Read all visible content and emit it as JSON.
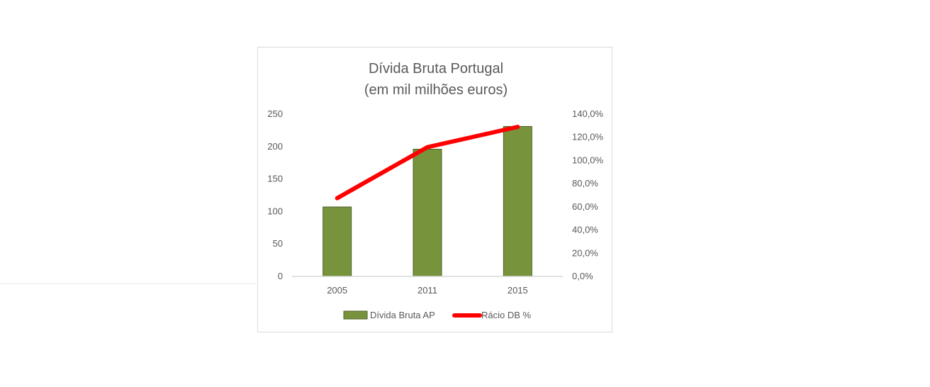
{
  "chart_data": {
    "type": "bar",
    "title": "Dívida Bruta Portugal",
    "subtitle": "(em mil milhões euros)",
    "categories": [
      "2005",
      "2011",
      "2015"
    ],
    "series": [
      {
        "name": "Dívida Bruta AP",
        "type": "bar",
        "axis": "left",
        "values": [
          107,
          196,
          231
        ],
        "color": "#77933c",
        "border": "#4f6228"
      },
      {
        "name": "Rácio DB %",
        "type": "line",
        "axis": "right",
        "values": [
          67.5,
          111.5,
          129.0
        ],
        "color": "#ff0000"
      }
    ],
    "y_left": {
      "min": 0,
      "max": 250,
      "ticks": [
        "0",
        "50",
        "100",
        "150",
        "200",
        "250"
      ]
    },
    "y_right": {
      "min": 0,
      "max": 140,
      "ticks": [
        "0,0%",
        "20,0%",
        "40,0%",
        "60,0%",
        "80,0%",
        "100,0%",
        "120,0%",
        "140,0%"
      ]
    },
    "grid": false,
    "legend": "bottom"
  }
}
